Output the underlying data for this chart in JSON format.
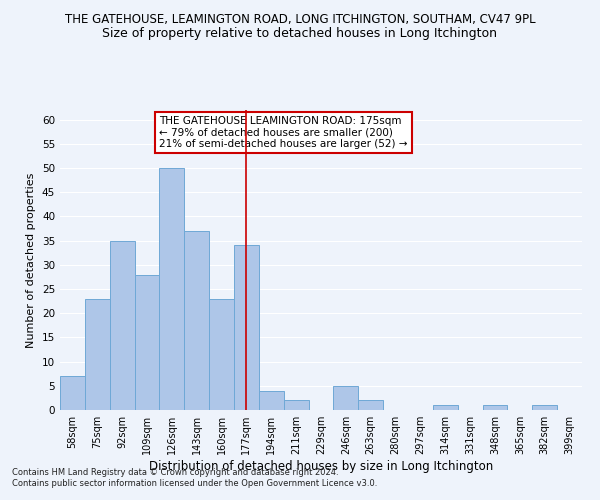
{
  "title": "THE GATEHOUSE, LEAMINGTON ROAD, LONG ITCHINGTON, SOUTHAM, CV47 9PL",
  "subtitle": "Size of property relative to detached houses in Long Itchington",
  "xlabel": "Distribution of detached houses by size in Long Itchington",
  "ylabel": "Number of detached properties",
  "categories": [
    "58sqm",
    "75sqm",
    "92sqm",
    "109sqm",
    "126sqm",
    "143sqm",
    "160sqm",
    "177sqm",
    "194sqm",
    "211sqm",
    "229sqm",
    "246sqm",
    "263sqm",
    "280sqm",
    "297sqm",
    "314sqm",
    "331sqm",
    "348sqm",
    "365sqm",
    "382sqm",
    "399sqm"
  ],
  "values": [
    7,
    23,
    35,
    28,
    50,
    37,
    23,
    34,
    4,
    2,
    0,
    5,
    2,
    0,
    0,
    1,
    0,
    1,
    0,
    1,
    0
  ],
  "bar_color": "#aec6e8",
  "bar_edge_color": "#6fa8d6",
  "vline_x_index": 7,
  "vline_color": "#cc0000",
  "ylim": [
    0,
    62
  ],
  "yticks": [
    0,
    5,
    10,
    15,
    20,
    25,
    30,
    35,
    40,
    45,
    50,
    55,
    60
  ],
  "annotation_line1": "THE GATEHOUSE LEAMINGTON ROAD: 175sqm",
  "annotation_line2": "← 79% of detached houses are smaller (200)",
  "annotation_line3": "21% of semi-detached houses are larger (52) →",
  "annotation_box_color": "#ffffff",
  "annotation_box_edge": "#cc0000",
  "footer": "Contains HM Land Registry data © Crown copyright and database right 2024.\nContains public sector information licensed under the Open Government Licence v3.0.",
  "bg_color": "#eef3fb",
  "grid_color": "#ffffff",
  "title_fontsize": 8.5,
  "subtitle_fontsize": 9,
  "ylabel_fontsize": 8,
  "xlabel_fontsize": 8.5,
  "tick_fontsize": 7,
  "annotation_fontsize": 7.5,
  "footer_fontsize": 6
}
